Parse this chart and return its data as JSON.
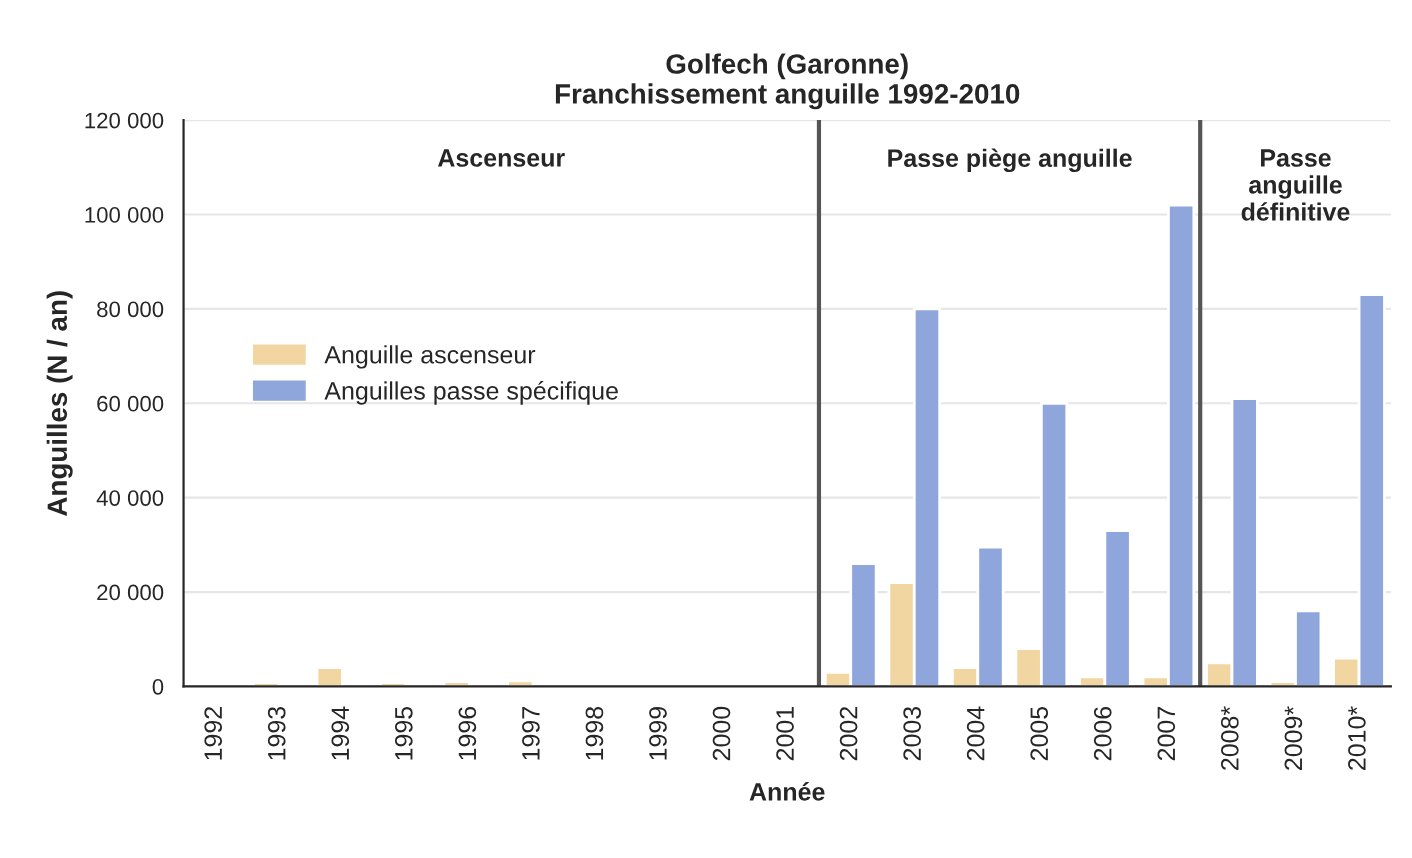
{
  "chart_data": {
    "type": "bar",
    "title": "Golfech (Garonne)\nFranchissement anguille 1992-2010",
    "xlabel": "Année",
    "ylabel": "Anguilles (N / an)",
    "categories": [
      "1992",
      "1993",
      "1994",
      "1995",
      "1996",
      "1997",
      "1998",
      "1999",
      "2000",
      "2001",
      "2002",
      "2003",
      "2004",
      "2005",
      "2006",
      "2007",
      "2008*",
      "2009*",
      "2010*"
    ],
    "series": [
      {
        "name": "Anguille ascenseur",
        "color": "#f2d6a2",
        "values": [
          null,
          800,
          4000,
          800,
          1000,
          1200,
          null,
          null,
          null,
          null,
          3000,
          22000,
          4000,
          8000,
          2000,
          2000,
          5000,
          1000,
          6000
        ]
      },
      {
        "name": "Anguilles passe spécifique",
        "color": "#8fa6dc",
        "values": [
          null,
          null,
          null,
          null,
          null,
          null,
          null,
          null,
          null,
          null,
          26000,
          80000,
          29500,
          60000,
          33000,
          102000,
          61000,
          16000,
          83000
        ]
      }
    ],
    "ylim": [
      0,
      120000
    ],
    "yticks": [
      {
        "value": 0,
        "label": "0"
      },
      {
        "value": 20000,
        "label": "20 000"
      },
      {
        "value": 40000,
        "label": "40 000"
      },
      {
        "value": 60000,
        "label": "60 000"
      },
      {
        "value": 80000,
        "label": "80 000"
      },
      {
        "value": 100000,
        "label": "100 000"
      },
      {
        "value": 120000,
        "label": "120 000"
      }
    ],
    "annotations": [
      "Ascenseur",
      "Passe piège anguille",
      "Passe\nanguille\ndéfinitive"
    ],
    "grid": "y",
    "legend": "left"
  }
}
